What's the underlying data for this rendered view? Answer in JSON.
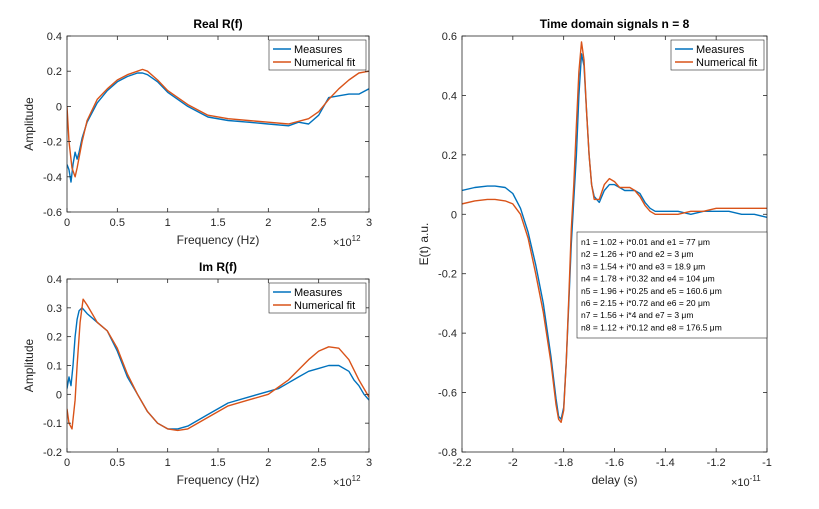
{
  "chart_data": [
    {
      "id": "real",
      "type": "line",
      "title": "Real R(f)",
      "xlabel": "Frequency (Hz)",
      "ylabel": "Amplitude",
      "x_exponent": "×10",
      "x_exponent_power": "12",
      "xlim": [
        0,
        3
      ],
      "ylim": [
        -0.6,
        0.4
      ],
      "xticks": [
        0,
        0.5,
        1,
        1.5,
        2,
        2.5,
        3
      ],
      "xtick_labels": [
        "0",
        "0.5",
        "1",
        "1.5",
        "2",
        "2.5",
        "3"
      ],
      "yticks": [
        -0.6,
        -0.4,
        -0.2,
        0,
        0.2,
        0.4
      ],
      "ytick_labels": [
        "-0.6",
        "-0.4",
        "-0.2",
        "0",
        "0.2",
        "0.4"
      ],
      "legend_position": "top-right",
      "series": [
        {
          "name": "Measures",
          "color": "#0072BD",
          "x": [
            0,
            0.02,
            0.04,
            0.06,
            0.08,
            0.1,
            0.12,
            0.15,
            0.2,
            0.3,
            0.4,
            0.5,
            0.6,
            0.7,
            0.75,
            0.8,
            0.9,
            1.0,
            1.2,
            1.4,
            1.6,
            1.8,
            2.0,
            2.2,
            2.3,
            2.4,
            2.5,
            2.6,
            2.7,
            2.8,
            2.9,
            3.0
          ],
          "y": [
            -0.33,
            -0.36,
            -0.43,
            -0.33,
            -0.26,
            -0.3,
            -0.26,
            -0.18,
            -0.09,
            0.02,
            0.09,
            0.14,
            0.17,
            0.19,
            0.19,
            0.18,
            0.14,
            0.08,
            0.0,
            -0.06,
            -0.08,
            -0.09,
            -0.1,
            -0.11,
            -0.09,
            -0.1,
            -0.05,
            0.05,
            0.06,
            0.07,
            0.07,
            0.1
          ]
        },
        {
          "name": "Numerical fit",
          "color": "#D95319",
          "x": [
            0,
            0.02,
            0.05,
            0.08,
            0.1,
            0.15,
            0.2,
            0.3,
            0.4,
            0.5,
            0.6,
            0.7,
            0.75,
            0.8,
            0.9,
            1.0,
            1.2,
            1.4,
            1.6,
            1.8,
            2.0,
            2.2,
            2.4,
            2.5,
            2.6,
            2.7,
            2.8,
            2.9,
            3.0
          ],
          "y": [
            0.0,
            -0.2,
            -0.35,
            -0.4,
            -0.35,
            -0.2,
            -0.08,
            0.04,
            0.1,
            0.15,
            0.18,
            0.2,
            0.21,
            0.2,
            0.15,
            0.09,
            0.01,
            -0.05,
            -0.07,
            -0.08,
            -0.09,
            -0.1,
            -0.07,
            -0.03,
            0.04,
            0.1,
            0.15,
            0.19,
            0.2
          ]
        }
      ]
    },
    {
      "id": "imag",
      "type": "line",
      "title": "Im R(f)",
      "xlabel": "Frequency (Hz)",
      "ylabel": "Amplitude",
      "x_exponent": "×10",
      "x_exponent_power": "12",
      "xlim": [
        0,
        3
      ],
      "ylim": [
        -0.2,
        0.4
      ],
      "xticks": [
        0,
        0.5,
        1,
        1.5,
        2,
        2.5,
        3
      ],
      "xtick_labels": [
        "0",
        "0.5",
        "1",
        "1.5",
        "2",
        "2.5",
        "3"
      ],
      "yticks": [
        -0.2,
        -0.1,
        0,
        0.1,
        0.2,
        0.3,
        0.4
      ],
      "ytick_labels": [
        "-0.2",
        "-0.1",
        "0",
        "0.1",
        "0.2",
        "0.3",
        "0.4"
      ],
      "legend_position": "top-right",
      "series": [
        {
          "name": "Measures",
          "color": "#0072BD",
          "x": [
            0,
            0.02,
            0.04,
            0.06,
            0.08,
            0.1,
            0.12,
            0.15,
            0.2,
            0.3,
            0.4,
            0.5,
            0.6,
            0.7,
            0.8,
            0.9,
            1.0,
            1.1,
            1.2,
            1.4,
            1.6,
            1.8,
            2.0,
            2.1,
            2.2,
            2.3,
            2.4,
            2.5,
            2.6,
            2.7,
            2.8,
            2.85,
            2.9,
            2.95,
            3.0
          ],
          "y": [
            0.02,
            0.06,
            0.03,
            0.1,
            0.2,
            0.26,
            0.29,
            0.3,
            0.28,
            0.25,
            0.22,
            0.15,
            0.06,
            0.0,
            -0.06,
            -0.1,
            -0.12,
            -0.12,
            -0.11,
            -0.07,
            -0.03,
            -0.01,
            0.01,
            0.02,
            0.04,
            0.06,
            0.08,
            0.09,
            0.1,
            0.1,
            0.08,
            0.05,
            0.03,
            0.0,
            -0.02
          ]
        },
        {
          "name": "Numerical fit",
          "color": "#D95319",
          "x": [
            0,
            0.02,
            0.05,
            0.08,
            0.1,
            0.13,
            0.16,
            0.2,
            0.3,
            0.4,
            0.5,
            0.6,
            0.7,
            0.8,
            0.9,
            1.0,
            1.1,
            1.2,
            1.4,
            1.6,
            1.8,
            2.0,
            2.2,
            2.4,
            2.5,
            2.6,
            2.7,
            2.8,
            2.9,
            3.0
          ],
          "y": [
            -0.05,
            -0.1,
            -0.12,
            -0.02,
            0.1,
            0.25,
            0.33,
            0.31,
            0.25,
            0.22,
            0.16,
            0.07,
            0.0,
            -0.06,
            -0.1,
            -0.12,
            -0.125,
            -0.12,
            -0.08,
            -0.04,
            -0.02,
            0.0,
            0.05,
            0.12,
            0.15,
            0.165,
            0.16,
            0.12,
            0.05,
            -0.01
          ]
        }
      ]
    },
    {
      "id": "time",
      "type": "line",
      "title": "Time domain signals n = 8",
      "xlabel": "delay (s)",
      "ylabel": "E(t) a.u.",
      "x_exponent": "×10",
      "x_exponent_power": "-11",
      "xlim": [
        -2.2,
        -1.0
      ],
      "ylim": [
        -0.8,
        0.6
      ],
      "xticks": [
        -2.2,
        -2.0,
        -1.8,
        -1.6,
        -1.4,
        -1.2,
        -1.0
      ],
      "xtick_labels": [
        "-2.2",
        "-2",
        "-1.8",
        "-1.6",
        "-1.4",
        "-1.2",
        "-1"
      ],
      "yticks": [
        -0.8,
        -0.6,
        -0.4,
        -0.2,
        0,
        0.2,
        0.4,
        0.6
      ],
      "ytick_labels": [
        "-0.8",
        "-0.6",
        "-0.4",
        "-0.2",
        "0",
        "0.2",
        "0.4",
        "0.6"
      ],
      "legend_position": "top-right",
      "series": [
        {
          "name": "Measures",
          "color": "#0072BD",
          "x": [
            -2.2,
            -2.15,
            -2.1,
            -2.07,
            -2.03,
            -2.0,
            -1.97,
            -1.94,
            -1.91,
            -1.88,
            -1.85,
            -1.83,
            -1.82,
            -1.81,
            -1.8,
            -1.79,
            -1.78,
            -1.77,
            -1.76,
            -1.75,
            -1.74,
            -1.73,
            -1.72,
            -1.71,
            -1.7,
            -1.69,
            -1.68,
            -1.66,
            -1.64,
            -1.62,
            -1.6,
            -1.58,
            -1.56,
            -1.54,
            -1.52,
            -1.5,
            -1.48,
            -1.46,
            -1.44,
            -1.4,
            -1.35,
            -1.3,
            -1.25,
            -1.2,
            -1.15,
            -1.1,
            -1.05,
            -1.0
          ],
          "y": [
            0.08,
            0.09,
            0.095,
            0.095,
            0.09,
            0.07,
            0.02,
            -0.06,
            -0.17,
            -0.3,
            -0.48,
            -0.62,
            -0.68,
            -0.69,
            -0.65,
            -0.5,
            -0.3,
            -0.1,
            0.05,
            0.2,
            0.4,
            0.54,
            0.5,
            0.35,
            0.2,
            0.1,
            0.06,
            0.04,
            0.08,
            0.1,
            0.1,
            0.09,
            0.08,
            0.08,
            0.08,
            0.07,
            0.04,
            0.02,
            0.01,
            0.01,
            0.01,
            0.0,
            0.01,
            0.01,
            0.01,
            0.0,
            0.0,
            -0.01
          ]
        },
        {
          "name": "Numerical fit",
          "color": "#D95319",
          "x": [
            -2.2,
            -2.15,
            -2.1,
            -2.07,
            -2.03,
            -2.0,
            -1.97,
            -1.94,
            -1.91,
            -1.88,
            -1.85,
            -1.83,
            -1.82,
            -1.81,
            -1.8,
            -1.79,
            -1.78,
            -1.77,
            -1.76,
            -1.75,
            -1.74,
            -1.73,
            -1.72,
            -1.71,
            -1.7,
            -1.69,
            -1.68,
            -1.66,
            -1.64,
            -1.62,
            -1.6,
            -1.58,
            -1.56,
            -1.54,
            -1.52,
            -1.5,
            -1.48,
            -1.46,
            -1.44,
            -1.4,
            -1.35,
            -1.3,
            -1.25,
            -1.2,
            -1.15,
            -1.1,
            -1.05,
            -1.0
          ],
          "y": [
            0.035,
            0.045,
            0.05,
            0.05,
            0.045,
            0.035,
            0.0,
            -0.08,
            -0.2,
            -0.33,
            -0.5,
            -0.64,
            -0.69,
            -0.7,
            -0.66,
            -0.5,
            -0.28,
            -0.05,
            0.1,
            0.3,
            0.48,
            0.58,
            0.52,
            0.35,
            0.2,
            0.1,
            0.05,
            0.05,
            0.1,
            0.12,
            0.11,
            0.09,
            0.09,
            0.09,
            0.08,
            0.06,
            0.03,
            0.01,
            0.0,
            0.0,
            0.0,
            0.01,
            0.01,
            0.02,
            0.02,
            0.02,
            0.02,
            0.02
          ]
        }
      ],
      "annotation": [
        "n1 = 1.02 + i*0.01 and e1 = 77 μm",
        "n2 = 1.26 + i*0 and e2 = 3 μm",
        "n3 = 1.54 + i*0 and e3 = 18.9 μm",
        "n4 = 1.78 + i*0.32 and e4 = 104 μm",
        "n5 = 1.96 + i*0.25 and e5 = 160.6 μm",
        "n6 = 2.15 + i*0.72 and e6 = 20 μm",
        "n7 = 1.56 + i*4 and e7 = 3 μm",
        "n8 = 1.12 + i*0.12 and e8 = 176.5 μm"
      ]
    }
  ]
}
